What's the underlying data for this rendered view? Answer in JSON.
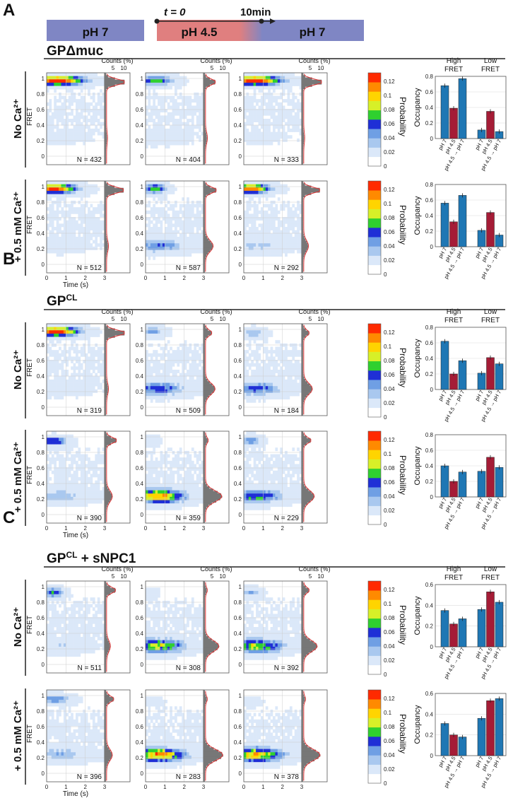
{
  "timeline": {
    "t0_label": "t = 0",
    "t10_label": "10min",
    "phases": [
      "pH 7",
      "pH 4.5",
      "pH 7"
    ],
    "colors": {
      "neutral": "#7f86c4",
      "acid": "#e07f7f"
    }
  },
  "colorbar": {
    "label": "Probability",
    "ticks": [
      "0",
      "0.02",
      "0.04",
      "0.06",
      "0.08",
      "0.1",
      "0.12"
    ],
    "colors": [
      "#ffffff",
      "#dbe8f9",
      "#a9c8ef",
      "#6f9fe4",
      "#1f2fd6",
      "#2fd02f",
      "#d7f028",
      "#ffd400",
      "#ff8a00",
      "#ff2a00"
    ]
  },
  "axes": {
    "hist_xlabel": "Time (s)",
    "hist_ylabel": "FRET",
    "hist_xticks": [
      "0",
      "1",
      "2",
      "3"
    ],
    "hist_yticks": [
      "1",
      "0.8",
      "0.6",
      "0.4",
      "0.2",
      "0"
    ],
    "counts_label": "Counts (%)",
    "counts_ticks": [
      "5",
      "10"
    ],
    "bar_ylabel": "Occupancy",
    "bar_group_labels": [
      "High FRET",
      "Low FRET"
    ],
    "bar_category_labels": [
      "pH 7",
      "pH 4.5",
      "pH 4.5 → pH 7"
    ],
    "bar_colors": [
      "#1f77b4",
      "#a51c36",
      "#1f77b4"
    ]
  },
  "row_labels": {
    "no_ca": "No Ca²⁺",
    "ca": "+ 0.5 mM Ca²⁺"
  },
  "chart_data": [
    {
      "panel": "A",
      "title_main": "GPΔmuc",
      "title_sup": "",
      "rows": [
        {
          "label": "No Ca²⁺",
          "N": [
            "N = 432",
            "N = 404",
            "N = 333"
          ],
          "type": "bar",
          "ylim": [
            0,
            0.8
          ],
          "yticks": [
            "0",
            "0.2",
            "0.4",
            "0.6",
            "0.8"
          ],
          "high_fret": [
            0.68,
            0.39,
            0.77
          ],
          "low_fret": [
            0.11,
            0.35,
            0.09
          ]
        },
        {
          "label": "+ 0.5 mM Ca²⁺",
          "N": [
            "N = 512",
            "N = 587",
            "N = 292"
          ],
          "type": "bar",
          "ylim": [
            0,
            0.8
          ],
          "yticks": [
            "0",
            "0.2",
            "0.4",
            "0.6",
            "0.8"
          ],
          "high_fret": [
            0.56,
            0.32,
            0.66
          ],
          "low_fret": [
            0.21,
            0.44,
            0.15
          ]
        }
      ]
    },
    {
      "panel": "B",
      "title_main": "GP",
      "title_sup": "CL",
      "rows": [
        {
          "label": "No Ca²⁺",
          "N": [
            "N = 319",
            "N = 509",
            "N = 184"
          ],
          "type": "bar",
          "ylim": [
            0,
            0.8
          ],
          "yticks": [
            "0",
            "0.2",
            "0.4",
            "0.6",
            "0.8"
          ],
          "high_fret": [
            0.62,
            0.2,
            0.37
          ],
          "low_fret": [
            0.21,
            0.41,
            0.33
          ]
        },
        {
          "label": "+ 0.5 mM Ca²⁺",
          "N": [
            "N = 390",
            "N = 359",
            "N = 229"
          ],
          "type": "bar",
          "ylim": [
            0,
            0.8
          ],
          "yticks": [
            "0",
            "0.2",
            "0.4",
            "0.6",
            "0.8"
          ],
          "high_fret": [
            0.4,
            0.2,
            0.32
          ],
          "low_fret": [
            0.33,
            0.51,
            0.38
          ]
        }
      ]
    },
    {
      "panel": "C",
      "title_main": "GP",
      "title_sup": "CL",
      "title_tail": " + sNPC1",
      "rows": [
        {
          "label": "No Ca²⁺",
          "N": [
            "N = 511",
            "N = 308",
            "N = 392"
          ],
          "type": "bar",
          "ylim": [
            0,
            0.6
          ],
          "yticks": [
            "0",
            "0.2",
            "0.4",
            "0.6"
          ],
          "high_fret": [
            0.35,
            0.22,
            0.27
          ],
          "low_fret": [
            0.36,
            0.53,
            0.43
          ]
        },
        {
          "label": "+ 0.5 mM Ca²⁺",
          "N": [
            "N = 396",
            "N = 283",
            "N = 378"
          ],
          "type": "bar",
          "ylim": [
            0,
            0.6
          ],
          "yticks": [
            "0",
            "0.2",
            "0.4",
            "0.6"
          ],
          "high_fret": [
            0.31,
            0.2,
            0.18
          ],
          "low_fret": [
            0.36,
            0.53,
            0.55
          ]
        }
      ]
    }
  ]
}
